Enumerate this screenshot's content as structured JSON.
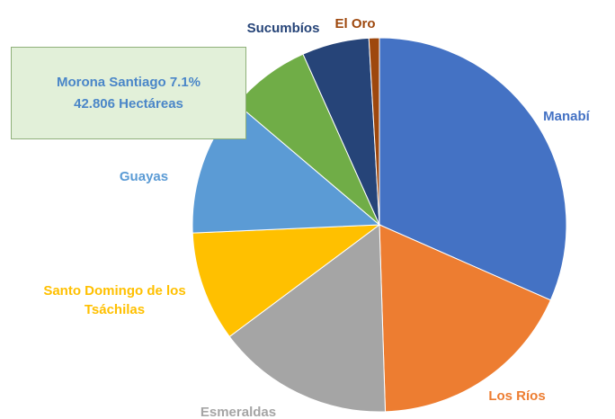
{
  "chart_data": {
    "type": "pie",
    "categories": [
      "Manabí",
      "Los Ríos",
      "Esmeraldas",
      "Santo Domingo de los Tsáchilas",
      "Guayas",
      "Morona Santiago",
      "Sucumbíos",
      "El Oro"
    ],
    "values": [
      31.6,
      17.9,
      15.3,
      9.5,
      11.9,
      7.1,
      5.8,
      0.9
    ],
    "value_labels": [
      null,
      null,
      null,
      null,
      null,
      "7.1%",
      null,
      null
    ],
    "colors": [
      "#4472c4",
      "#ed7d31",
      "#a5a5a5",
      "#ffc000",
      "#5b9bd5",
      "#70ad47",
      "#264478",
      "#9e480e"
    ],
    "annotations": [
      "42.806 Hectáreas"
    ]
  }
}
